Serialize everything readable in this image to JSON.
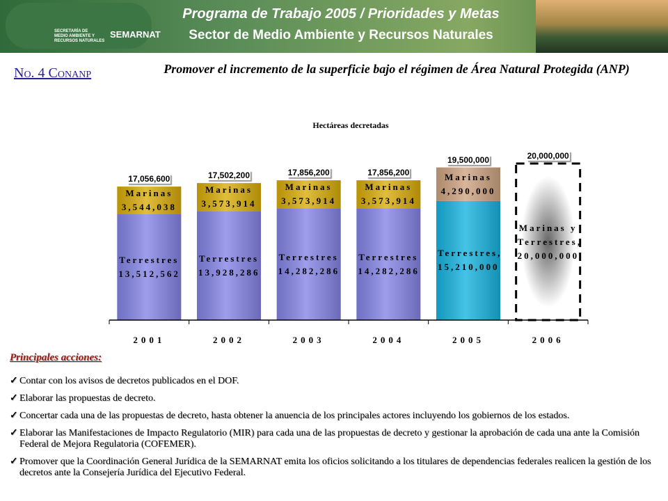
{
  "header": {
    "logo_lines": [
      "SECRETARÍA DE",
      "MEDIO AMBIENTE Y",
      "RECURSOS NATURALES"
    ],
    "logo_brand": "SEMARNAT",
    "title": "Programa de Trabajo 2005 / Prioridades y Metas",
    "subtitle": "Sector de Medio Ambiente y Recursos Naturales"
  },
  "slide_number": "No. 4 Conanp",
  "heading": "Promover el incremento de la superficie bajo el régimen de Área Natural Protegida (ANP)",
  "chart_data": {
    "type": "stacked_bar",
    "title": "Hectáreas decretadas",
    "categories": [
      "2001",
      "2002",
      "2003",
      "2004",
      "2005",
      "2006"
    ],
    "series": [
      {
        "name": "Terrestres",
        "colors": [
          "#8585e6",
          "#8585e6",
          "#8585e6",
          "#8585e6",
          "#19b4e0",
          null
        ],
        "values": [
          13512562,
          13928286,
          14282286,
          14282286,
          15210000,
          null
        ],
        "value_labels": [
          "Terrestres 13,512,562",
          "Terrestres 13,928,286",
          "Terrestres 14,282,286",
          "Terrestres 14,282,286",
          "Terrestres, 15,210,000",
          null
        ]
      },
      {
        "name": "Marinas",
        "colors": [
          "#d9ad0a",
          "#d9ad0a",
          "#d9ad0a",
          "#d9ad0a",
          "#cfa482",
          null
        ],
        "values": [
          3544038,
          3573914,
          3573914,
          3573914,
          4290000,
          null
        ],
        "value_labels": [
          "Marinas 3,544,038",
          "Marinas 3,573,914",
          "Marinas 3,573,914",
          "Marinas 3,573,914",
          "Marinas 4,290,000",
          null
        ]
      },
      {
        "name": "Marinas y Terrestres",
        "colors": [
          null,
          null,
          null,
          null,
          null,
          "#808080"
        ],
        "values": [
          null,
          null,
          null,
          null,
          null,
          20000000
        ],
        "value_labels": [
          null,
          null,
          null,
          null,
          null,
          "Marinas y Terrestres, 20,000,000"
        ]
      }
    ],
    "totals": [
      17056600,
      17502200,
      17856200,
      17856200,
      19500000,
      20000000
    ],
    "total_labels": [
      "17,056,600",
      "17,502,200",
      "17,856,200",
      "17,856,200",
      "19,500,000",
      "20,000,000"
    ],
    "ylim": [
      0,
      24000000
    ]
  },
  "actions": {
    "title": "Principales acciones:",
    "items": [
      "Contar con los avisos de decretos publicados en el DOF.",
      "Elaborar las propuestas de decreto.",
      "Concertar cada una de las propuestas de decreto, hasta obtener la anuencia de los principales actores incluyendo los gobiernos de los estados.",
      "Elaborar las Manifestaciones de Impacto Regulatorio (MIR) para cada una de las propuestas de decreto y gestionar la aprobación de cada una ante la Comisión Federal de Mejora Regulatoria (COFEMER).",
      "Promover que la Coordinación General Jurídica de la SEMARNAT emita los oficios solicitando a los titulares de dependencias federales realicen la gestión de los decretos ante la Consejería Jurídica del Ejecutivo Federal."
    ]
  }
}
